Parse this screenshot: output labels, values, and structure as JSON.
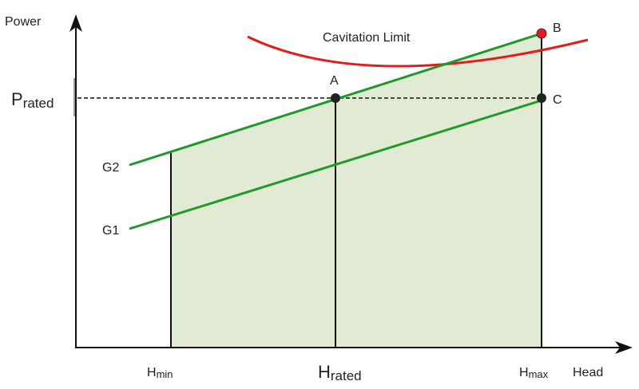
{
  "axes": {
    "y_label": "Power",
    "x_label": "Head"
  },
  "rated_power": {
    "main": "P",
    "sub": "rated"
  },
  "head_ticks": [
    {
      "main": "H",
      "sub": "min"
    },
    {
      "main": "H",
      "sub": "rated"
    },
    {
      "main": "H",
      "sub": "max"
    }
  ],
  "lines": {
    "g2": "G2",
    "g1": "G1",
    "cavitation": "Cavitation Limit"
  },
  "points": {
    "a": "A",
    "b": "B",
    "c": "C"
  },
  "colors": {
    "line_green": "#1f9a2a",
    "fill_green": "#e1ebd3",
    "cavitation_red": "#e41b1b",
    "point_b": "#e41b1b",
    "point_dark": "#222222"
  }
}
